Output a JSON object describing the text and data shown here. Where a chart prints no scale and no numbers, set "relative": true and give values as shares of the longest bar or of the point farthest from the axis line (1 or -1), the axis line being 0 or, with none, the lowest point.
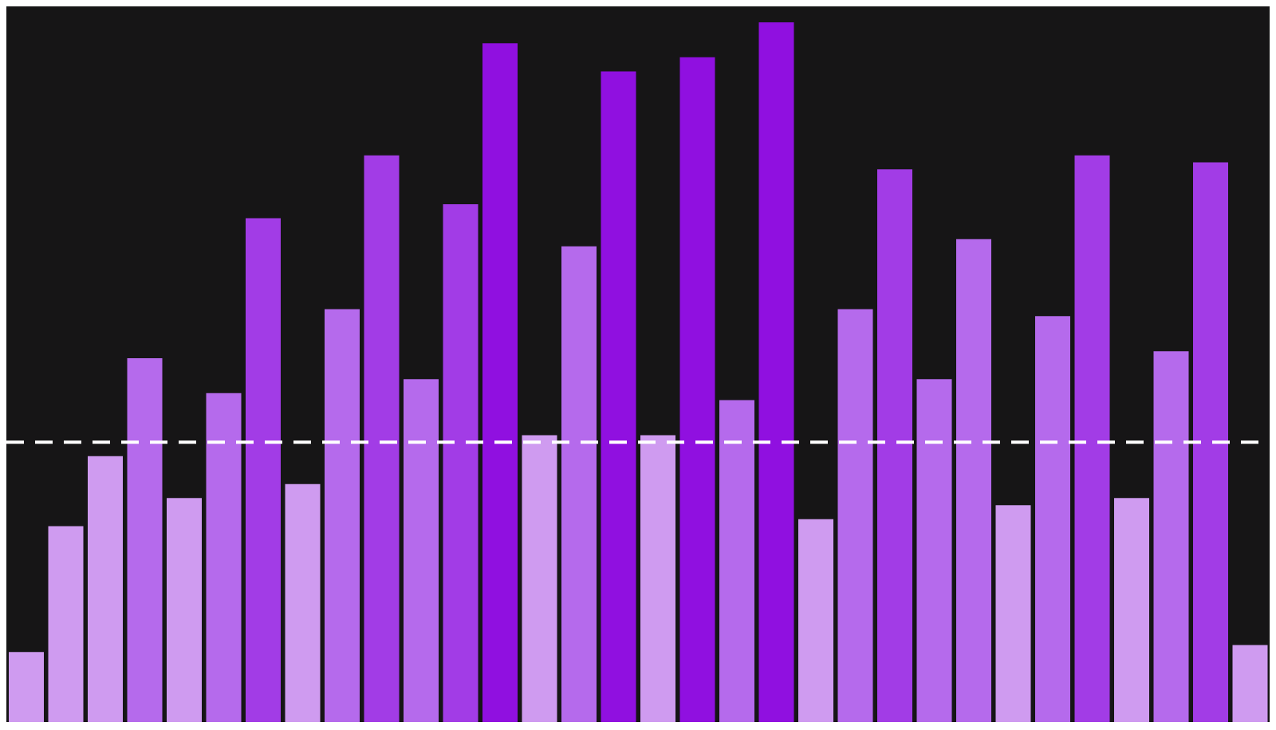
{
  "chart_data": {
    "type": "bar",
    "relative": true,
    "categories": [
      null,
      null,
      null,
      null,
      null,
      null,
      null,
      null,
      null,
      null,
      null,
      null,
      null,
      null,
      null,
      null,
      null,
      null,
      null,
      null,
      null,
      null,
      null,
      null,
      null,
      null,
      null,
      null,
      null,
      null,
      null,
      null
    ],
    "values": [
      0.1,
      0.28,
      0.38,
      0.52,
      0.32,
      0.47,
      0.72,
      0.34,
      0.59,
      0.81,
      0.49,
      0.74,
      0.97,
      0.41,
      0.68,
      0.93,
      0.41,
      0.95,
      0.46,
      1.0,
      0.29,
      0.59,
      0.79,
      0.49,
      0.69,
      0.31,
      0.58,
      0.81,
      0.32,
      0.53,
      0.8,
      0.11
    ],
    "colors": [
      "#cf9bf0",
      "#cf9bf0",
      "#cf9bf0",
      "#b56aec",
      "#cf9bf0",
      "#b56aec",
      "#a23ce6",
      "#cf9bf0",
      "#b56aec",
      "#a23ce6",
      "#b56aec",
      "#a23ce6",
      "#9010e0",
      "#cf9bf0",
      "#b56aec",
      "#9010e0",
      "#cf9bf0",
      "#9010e0",
      "#b56aec",
      "#9010e0",
      "#cf9bf0",
      "#b56aec",
      "#a23ce6",
      "#b56aec",
      "#b56aec",
      "#cf9bf0",
      "#b56aec",
      "#a23ce6",
      "#cf9bf0",
      "#b56aec",
      "#a23ce6",
      "#cf9bf0"
    ],
    "ref_lines": [
      {
        "axis": "y",
        "value": 0.4,
        "color": "#ffffff",
        "line_style": "dashed"
      }
    ]
  }
}
